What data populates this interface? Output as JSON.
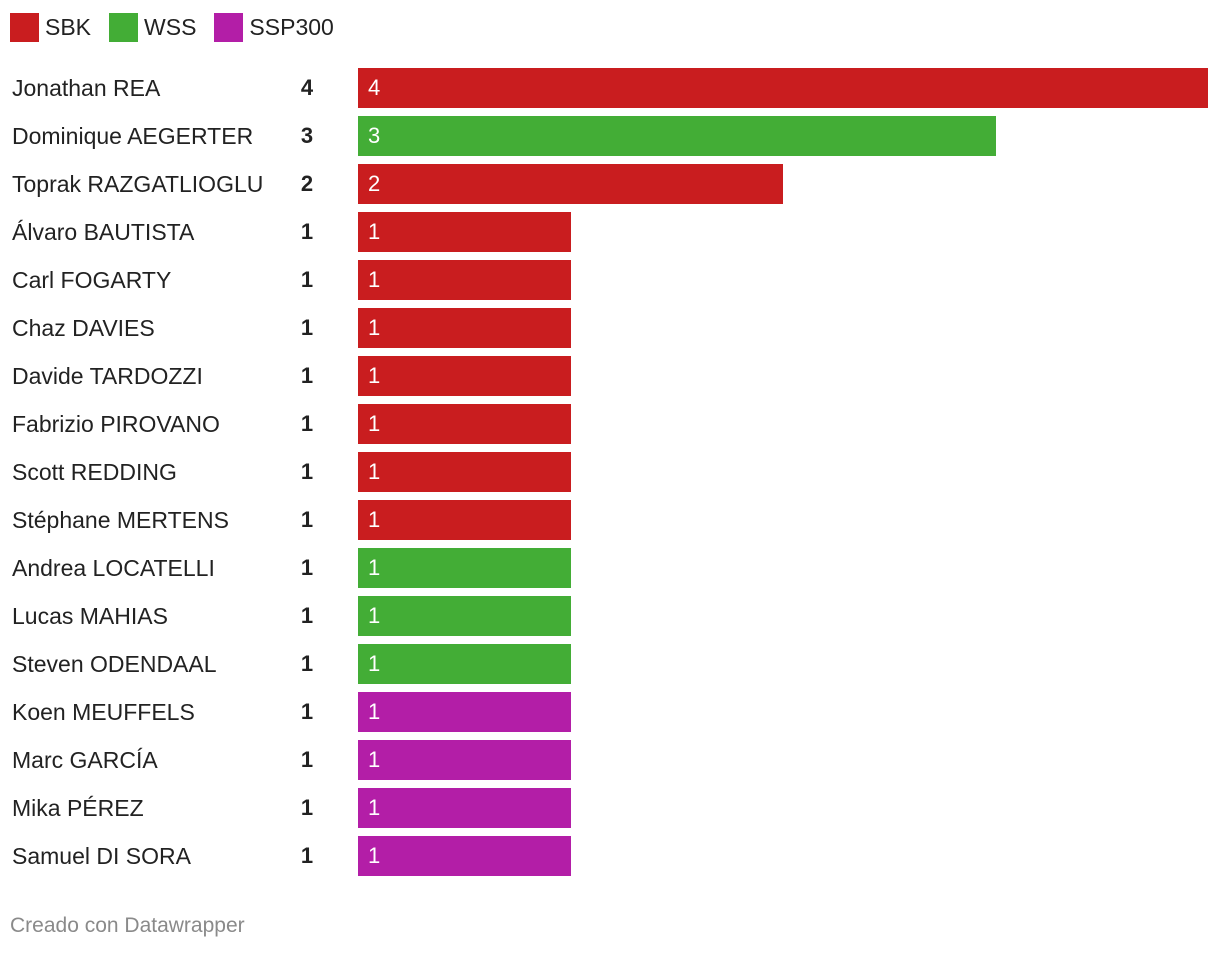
{
  "chart_data": {
    "type": "bar",
    "orientation": "horizontal",
    "legend": [
      {
        "name": "SBK",
        "color": "#c91d1f"
      },
      {
        "name": "WSS",
        "color": "#43ad36"
      },
      {
        "name": "SSP300",
        "color": "#b31ea7"
      }
    ],
    "legend_placement": "top-left",
    "xlim": [
      0,
      4
    ],
    "grid": false,
    "rows": [
      {
        "name": "Jonathan REA",
        "value": 4,
        "series": "SBK"
      },
      {
        "name": "Dominique AEGERTER",
        "value": 3,
        "series": "WSS"
      },
      {
        "name": "Toprak RAZGATLIOGLU",
        "value": 2,
        "series": "SBK"
      },
      {
        "name": "Álvaro BAUTISTA",
        "value": 1,
        "series": "SBK"
      },
      {
        "name": "Carl FOGARTY",
        "value": 1,
        "series": "SBK"
      },
      {
        "name": "Chaz DAVIES",
        "value": 1,
        "series": "SBK"
      },
      {
        "name": "Davide TARDOZZI",
        "value": 1,
        "series": "SBK"
      },
      {
        "name": "Fabrizio PIROVANO",
        "value": 1,
        "series": "SBK"
      },
      {
        "name": "Scott REDDING",
        "value": 1,
        "series": "SBK"
      },
      {
        "name": "Stéphane MERTENS",
        "value": 1,
        "series": "SBK"
      },
      {
        "name": "Andrea LOCATELLI",
        "value": 1,
        "series": "WSS"
      },
      {
        "name": "Lucas MAHIAS",
        "value": 1,
        "series": "WSS"
      },
      {
        "name": "Steven ODENDAAL",
        "value": 1,
        "series": "WSS"
      },
      {
        "name": "Koen MEUFFELS",
        "value": 1,
        "series": "SSP300"
      },
      {
        "name": "Marc GARCÍA",
        "value": 1,
        "series": "SSP300"
      },
      {
        "name": "Mika PÉREZ",
        "value": 1,
        "series": "SSP300"
      },
      {
        "name": "Samuel DI SORA",
        "value": 1,
        "series": "SSP300"
      }
    ]
  },
  "footer": "Creado con Datawrapper"
}
